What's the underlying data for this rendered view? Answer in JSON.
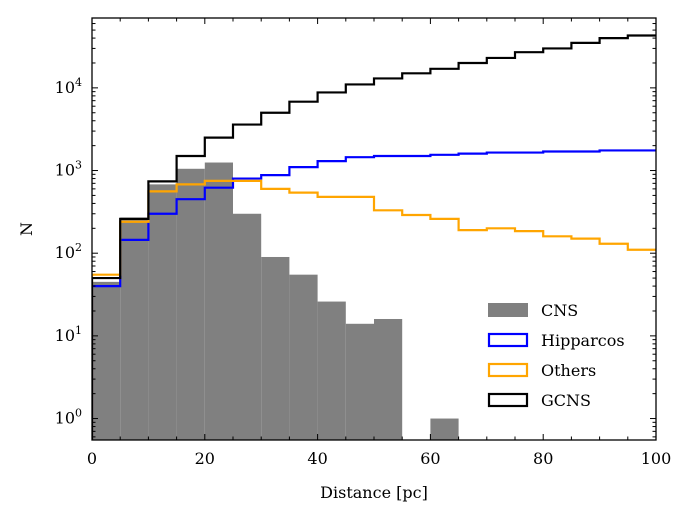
{
  "chart_data": {
    "type": "histogram",
    "xlabel": "Distance [pc]",
    "ylabel": "N",
    "xlim": [
      0,
      100
    ],
    "ylim": [
      0.55,
      70000
    ],
    "yscale": "log",
    "bin_edges": [
      0,
      5,
      10,
      15,
      20,
      25,
      30,
      35,
      40,
      45,
      50,
      55,
      60,
      65,
      70,
      75,
      80,
      85,
      90,
      95,
      100
    ],
    "x_ticks": [
      0,
      20,
      40,
      60,
      80,
      100
    ],
    "x_tick_labels": [
      "0",
      "20",
      "40",
      "60",
      "80",
      "100"
    ],
    "y_ticks": [
      1,
      10,
      100,
      1000,
      10000
    ],
    "y_tick_labels": [
      {
        "base": "10",
        "exp": "0"
      },
      {
        "base": "10",
        "exp": "1"
      },
      {
        "base": "10",
        "exp": "2"
      },
      {
        "base": "10",
        "exp": "3"
      },
      {
        "base": "10",
        "exp": "4"
      }
    ],
    "legend_position": "lower-right",
    "series": [
      {
        "name": "CNS",
        "style": "filled",
        "color": "#808080",
        "values": [
          45,
          270,
          680,
          1050,
          1250,
          300,
          90,
          55,
          26,
          14,
          16,
          0,
          1,
          0,
          0,
          0,
          0,
          0,
          0,
          0
        ]
      },
      {
        "name": "Hipparcos",
        "style": "step",
        "color": "#0000ff",
        "values": [
          40,
          145,
          300,
          450,
          620,
          800,
          880,
          1100,
          1300,
          1450,
          1500,
          1500,
          1550,
          1600,
          1650,
          1650,
          1700,
          1700,
          1750,
          1750
        ]
      },
      {
        "name": "Others",
        "style": "step",
        "color": "#ffa500",
        "values": [
          55,
          240,
          560,
          680,
          750,
          750,
          600,
          540,
          480,
          480,
          330,
          290,
          260,
          190,
          200,
          185,
          160,
          150,
          130,
          110
        ]
      },
      {
        "name": "GCNS",
        "style": "step",
        "color": "#000000",
        "values": [
          50,
          260,
          740,
          1500,
          2500,
          3600,
          5000,
          6800,
          8800,
          11000,
          13000,
          15000,
          17000,
          20000,
          23000,
          27000,
          30000,
          35000,
          40000,
          43000
        ]
      }
    ]
  }
}
